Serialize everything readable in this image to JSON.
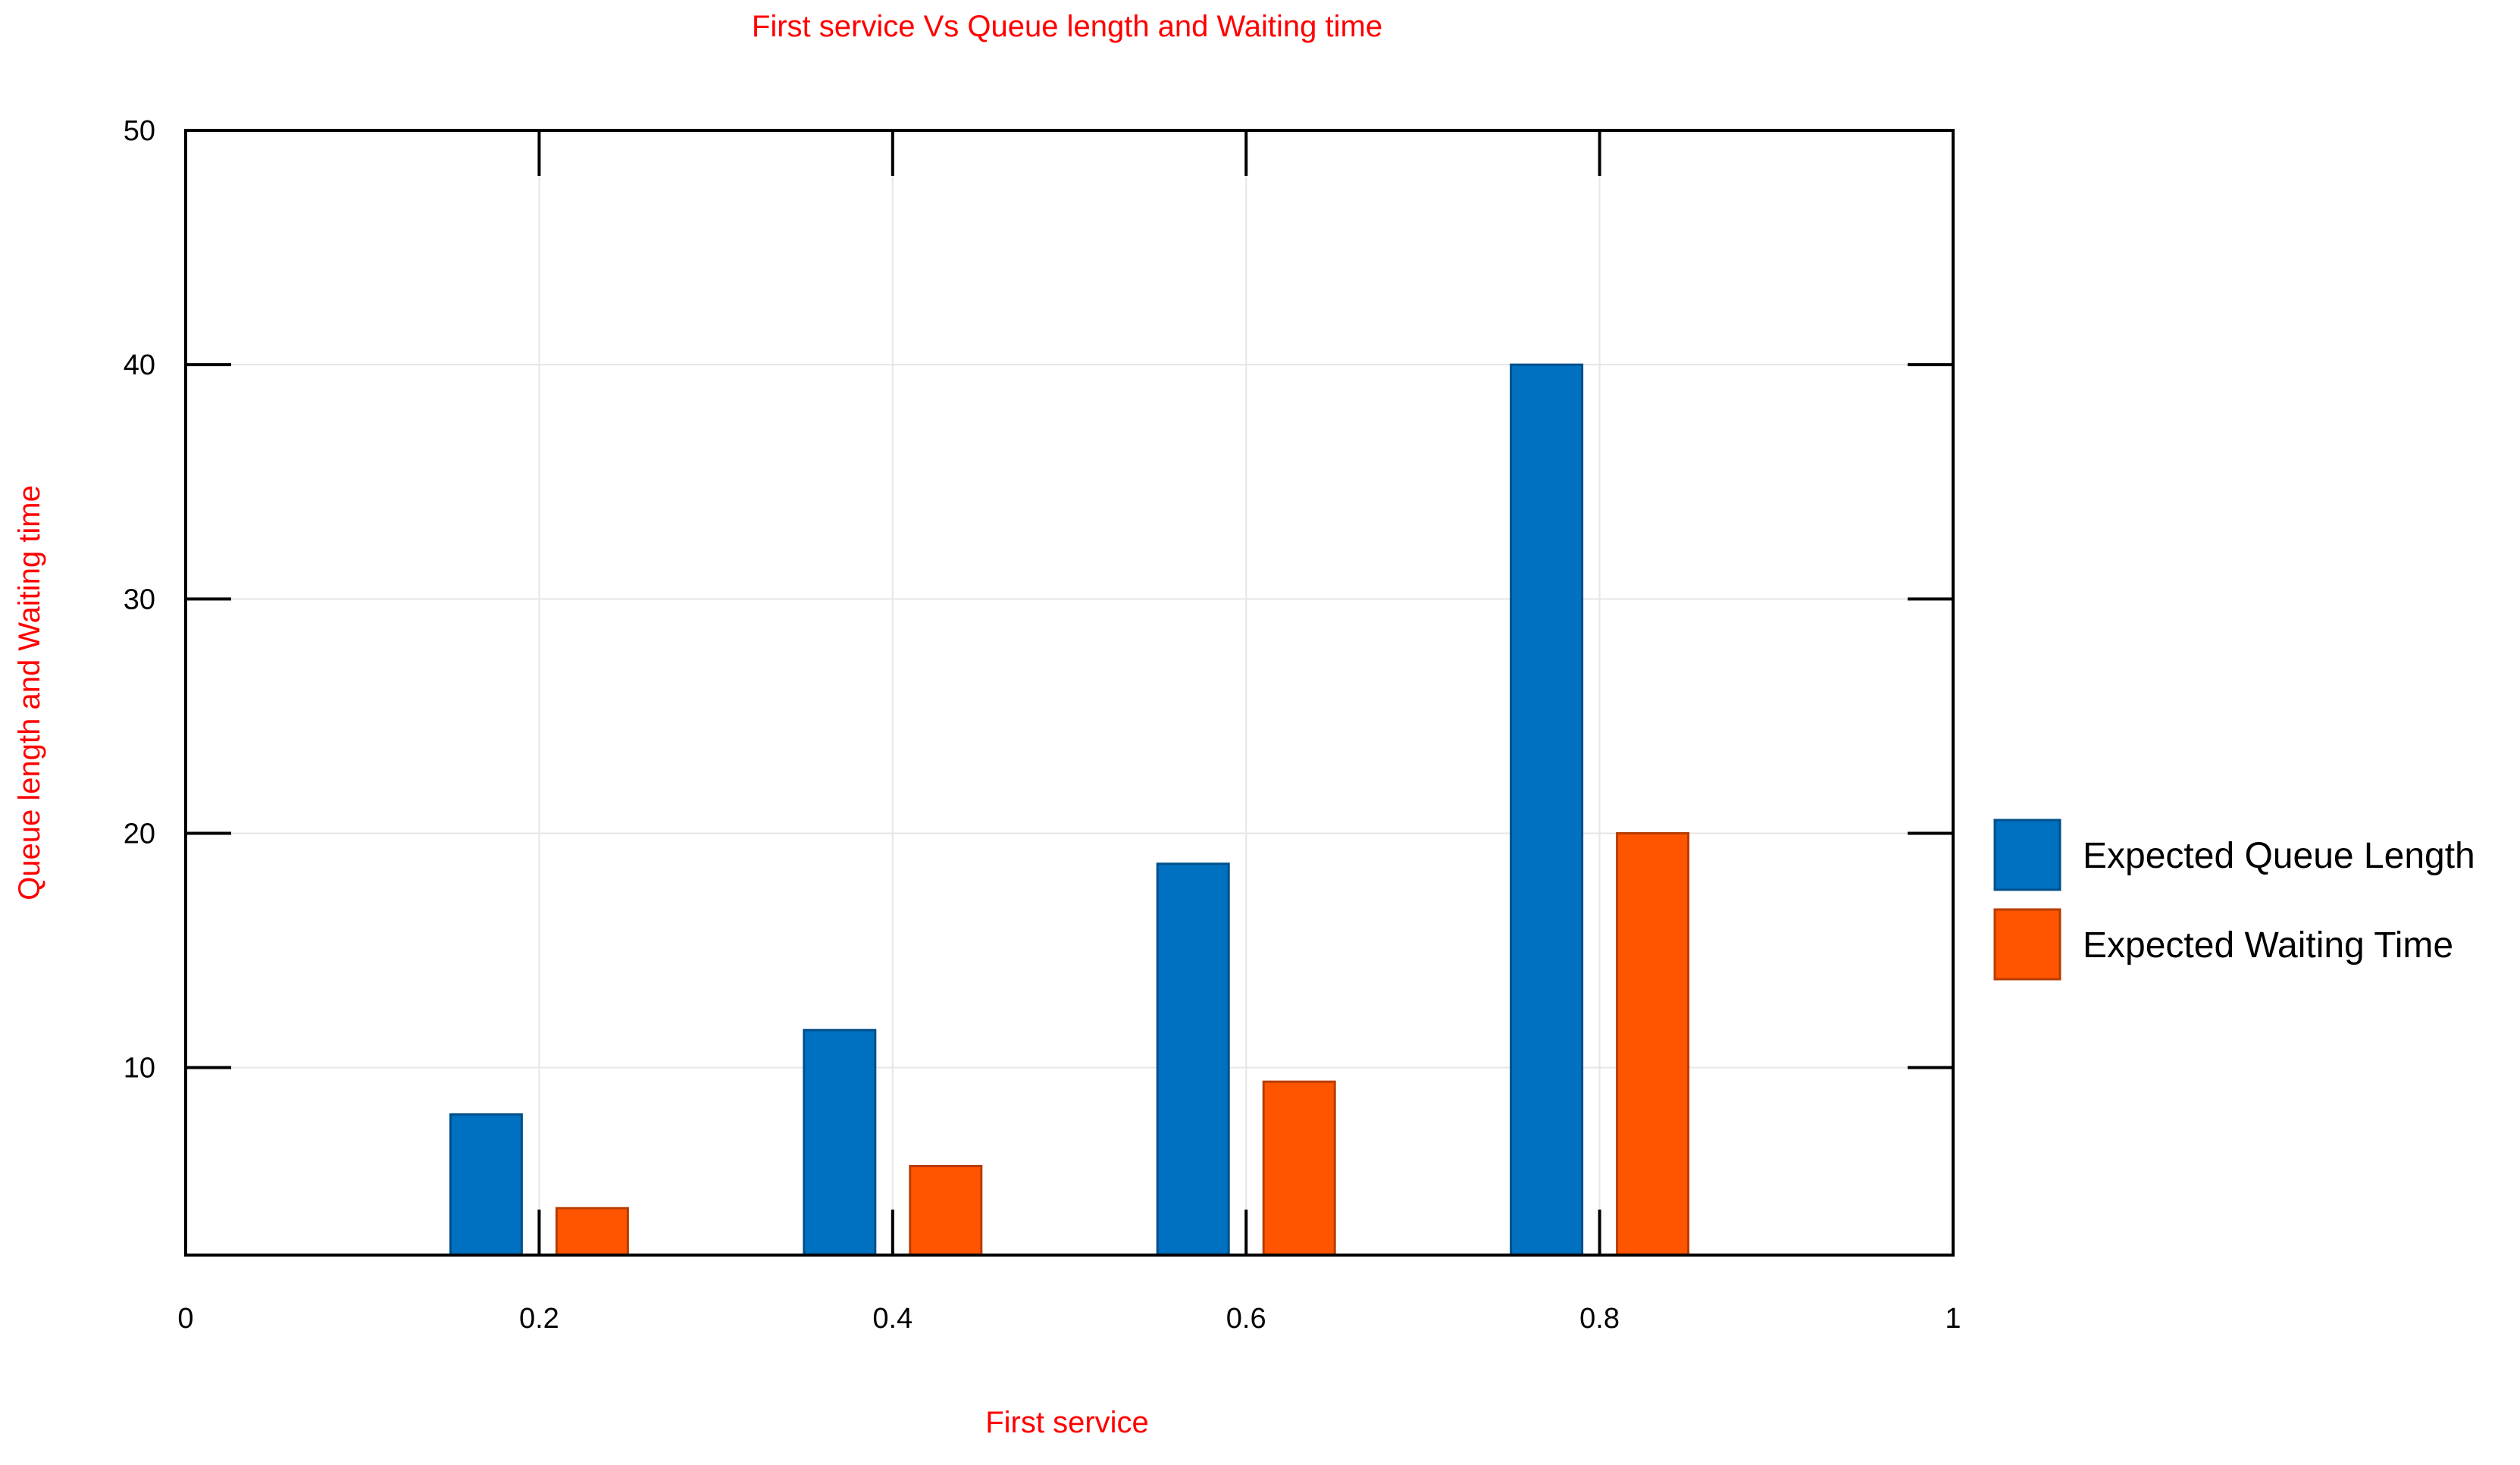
{
  "chart_data": {
    "type": "bar",
    "title": "First service Vs Queue length and Waiting time",
    "xlabel": "First service",
    "ylabel": "Queue length and Waiting time",
    "x": [
      0.2,
      0.4,
      0.6,
      0.8
    ],
    "xlim": [
      0,
      1
    ],
    "ylim": [
      2,
      50
    ],
    "x_ticks": [
      "0",
      "0.2",
      "0.4",
      "0.6",
      "0.8",
      "1"
    ],
    "x_tick_values": [
      0,
      0.2,
      0.4,
      0.6,
      0.8,
      1
    ],
    "y_ticks": [
      "10",
      "20",
      "30",
      "40",
      "50"
    ],
    "y_tick_values": [
      10,
      20,
      30,
      40,
      50
    ],
    "grid": true,
    "legend_position": "right",
    "series": [
      {
        "name": "Expected Queue Length",
        "color": "#0070C0",
        "values": [
          8.0,
          11.6,
          18.7,
          40.0
        ]
      },
      {
        "name": "Expected Waiting Time",
        "color": "#FF5500",
        "values": [
          4.0,
          5.8,
          9.4,
          20.0
        ]
      }
    ],
    "colors": {
      "title": "#FF0000",
      "axis_label": "#FF0000",
      "tick_label": "#000000",
      "grid": "#E6E6E6"
    }
  }
}
